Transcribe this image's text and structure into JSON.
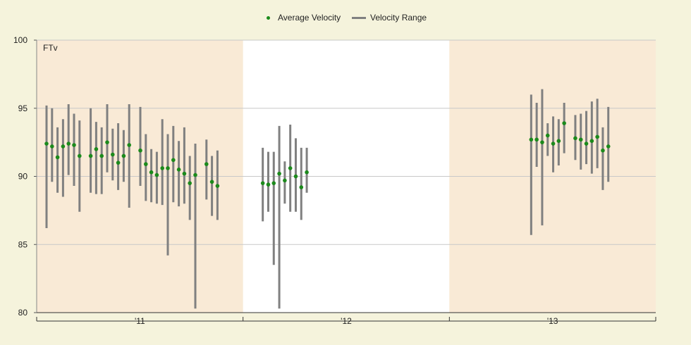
{
  "chart_data": {
    "type": "scatter",
    "title": "",
    "inner_label": "FTv",
    "xlabel": "",
    "ylabel": "",
    "ylim": [
      80,
      100
    ],
    "yticks": [
      80,
      85,
      90,
      95,
      100
    ],
    "grid": true,
    "legend_position": "top-center",
    "legend": [
      {
        "label": "Average Velocity",
        "marker": "dot",
        "color": "#1b8a1b"
      },
      {
        "label": "Velocity Range",
        "marker": "line",
        "color": "#808080"
      }
    ],
    "seasons": [
      {
        "label": "'11",
        "shaded": true
      },
      {
        "label": "'12",
        "shaded": false
      },
      {
        "label": "'13",
        "shaded": true
      }
    ],
    "colors": {
      "season_shade": "#f9ead6",
      "season_plain": "#ffffff",
      "avg": "#1b8a1b",
      "range": "#808080",
      "grid": "#c8c8c8"
    },
    "series": [
      {
        "season": "'11",
        "name": "Average Velocity",
        "values": [
          92.4,
          92.2,
          91.4,
          92.2,
          92.4,
          92.3,
          91.5,
          91.5,
          92.0,
          91.5,
          92.5,
          91.6,
          91.0,
          91.5,
          92.3,
          91.9,
          90.9,
          90.3,
          90.1,
          90.6,
          90.6,
          91.2,
          90.5,
          90.2,
          89.5,
          90.1,
          90.9,
          89.6,
          89.3
        ]
      },
      {
        "season": "'11",
        "name": "Velocity Range",
        "low": [
          86.2,
          89.6,
          88.8,
          88.5,
          90.1,
          89.3,
          87.4,
          88.8,
          88.7,
          88.7,
          90.3,
          89.7,
          89.0,
          89.6,
          87.7,
          89.3,
          88.2,
          88.1,
          88.0,
          87.9,
          84.2,
          88.1,
          87.8,
          88.0,
          86.8,
          80.3,
          88.3,
          87.1,
          86.8
        ],
        "high": [
          95.2,
          95.0,
          93.6,
          94.2,
          95.3,
          94.6,
          94.1,
          95.0,
          94.0,
          93.6,
          95.3,
          93.5,
          93.9,
          93.4,
          95.3,
          95.1,
          93.1,
          92.0,
          91.8,
          94.2,
          93.1,
          93.7,
          92.6,
          93.6,
          91.5,
          92.4,
          92.7,
          91.5,
          91.9
        ]
      },
      {
        "season": "'12",
        "name": "Average Velocity",
        "values": [
          89.5,
          89.4,
          89.5,
          90.2,
          89.7,
          90.6,
          90.0,
          89.2,
          90.3
        ]
      },
      {
        "season": "'12",
        "name": "Velocity Range",
        "low": [
          86.7,
          87.4,
          83.5,
          80.3,
          88.0,
          87.4,
          87.4,
          86.8,
          88.8
        ],
        "high": [
          92.1,
          91.8,
          91.8,
          93.7,
          91.1,
          93.8,
          92.8,
          92.1,
          92.1
        ]
      },
      {
        "season": "'13",
        "name": "Average Velocity",
        "values": [
          92.7,
          92.7,
          92.5,
          93.0,
          92.4,
          92.6,
          93.9,
          92.8,
          92.7,
          92.4,
          92.6,
          92.9,
          91.9,
          92.2
        ]
      },
      {
        "season": "'13",
        "name": "Velocity Range",
        "low": [
          85.7,
          90.7,
          86.4,
          91.5,
          90.3,
          90.8,
          91.7,
          91.2,
          90.5,
          90.9,
          90.2,
          90.6,
          89.0,
          89.6
        ],
        "high": [
          96.0,
          95.4,
          96.4,
          93.9,
          94.4,
          94.2,
          95.4,
          94.5,
          94.6,
          94.8,
          95.5,
          95.7,
          93.6,
          95.1
        ]
      }
    ]
  }
}
